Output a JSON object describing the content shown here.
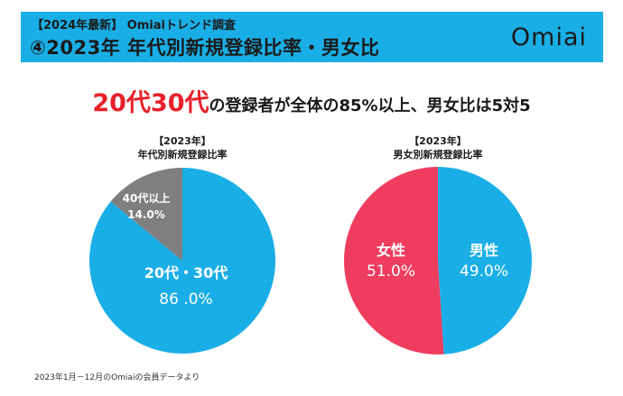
{
  "header": {
    "tag": "【2024年最新】 Omiaiトレンド調査",
    "title": "④2023年 年代別新規登録比率・男女比",
    "logo": "Omiai",
    "bg_color": "#1aaee6"
  },
  "headline": {
    "accent": "20代30代",
    "rest": "の登録者が全体の85%以上、男女比は5対5",
    "accent_color": "#e8202a"
  },
  "chart_data": [
    {
      "type": "pie",
      "title": "【2023年】",
      "subtitle": "年代別新規登録比率",
      "slices": [
        {
          "label": "20代・30代",
          "value_label": "86 .0%",
          "value": 86.0,
          "color": "#1aaee6"
        },
        {
          "label": "40代以上",
          "value_label": "14.0%",
          "value": 14.0,
          "color": "#7f7f7f"
        }
      ]
    },
    {
      "type": "pie",
      "title": "【2023年】",
      "subtitle": "男女別新規登録比率",
      "slices": [
        {
          "label": "男性",
          "value_label": "49.0%",
          "value": 49.0,
          "color": "#1aaee6"
        },
        {
          "label": "女性",
          "value_label": "51.0%",
          "value": 51.0,
          "color": "#ee3d5f"
        }
      ]
    }
  ],
  "footnote": "2023年1月－12月のOmiaiの会員データより"
}
